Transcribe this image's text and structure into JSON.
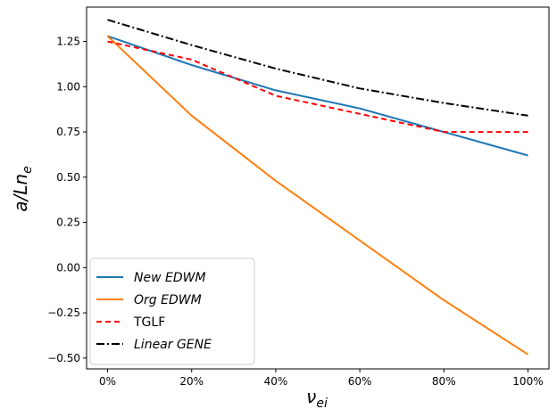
{
  "chart_data": {
    "type": "line",
    "x": [
      0,
      20,
      40,
      60,
      80,
      100
    ],
    "xtick_labels": [
      "0%",
      "20%",
      "40%",
      "60%",
      "80%",
      "100%"
    ],
    "xlim": [
      -5,
      105
    ],
    "ylim": [
      -0.56,
      1.44
    ],
    "yticks": [
      -0.5,
      -0.25,
      0.0,
      0.25,
      0.5,
      0.75,
      1.0,
      1.25
    ],
    "ytick_labels": [
      "−0.50",
      "−0.25",
      "0.00",
      "0.25",
      "0.50",
      "0.75",
      "1.00",
      "1.25"
    ],
    "xlabel_main": "ν",
    "xlabel_sub": "ei",
    "ylabel_main": "a/Ln",
    "ylabel_sub": "e",
    "grid": false,
    "legend_position": "lower-left",
    "series": [
      {
        "name": "New EDWM",
        "italic": true,
        "color": "#1f77b4",
        "dash": "solid",
        "values": [
          1.28,
          1.12,
          0.98,
          0.88,
          0.75,
          0.62
        ]
      },
      {
        "name": "Org EDWM",
        "italic": true,
        "color": "#ff7f0e",
        "dash": "solid",
        "values": [
          1.28,
          0.84,
          0.48,
          0.15,
          -0.18,
          -0.48
        ]
      },
      {
        "name": "TGLF",
        "italic": false,
        "color": "#ff0000",
        "dash": "dashed",
        "values": [
          1.25,
          1.15,
          0.95,
          0.85,
          0.75,
          0.75
        ]
      },
      {
        "name": "Linear GENE",
        "italic": true,
        "color": "#000000",
        "dash": "dashdot",
        "values": [
          1.37,
          1.23,
          1.1,
          0.99,
          0.91,
          0.84
        ]
      }
    ]
  }
}
